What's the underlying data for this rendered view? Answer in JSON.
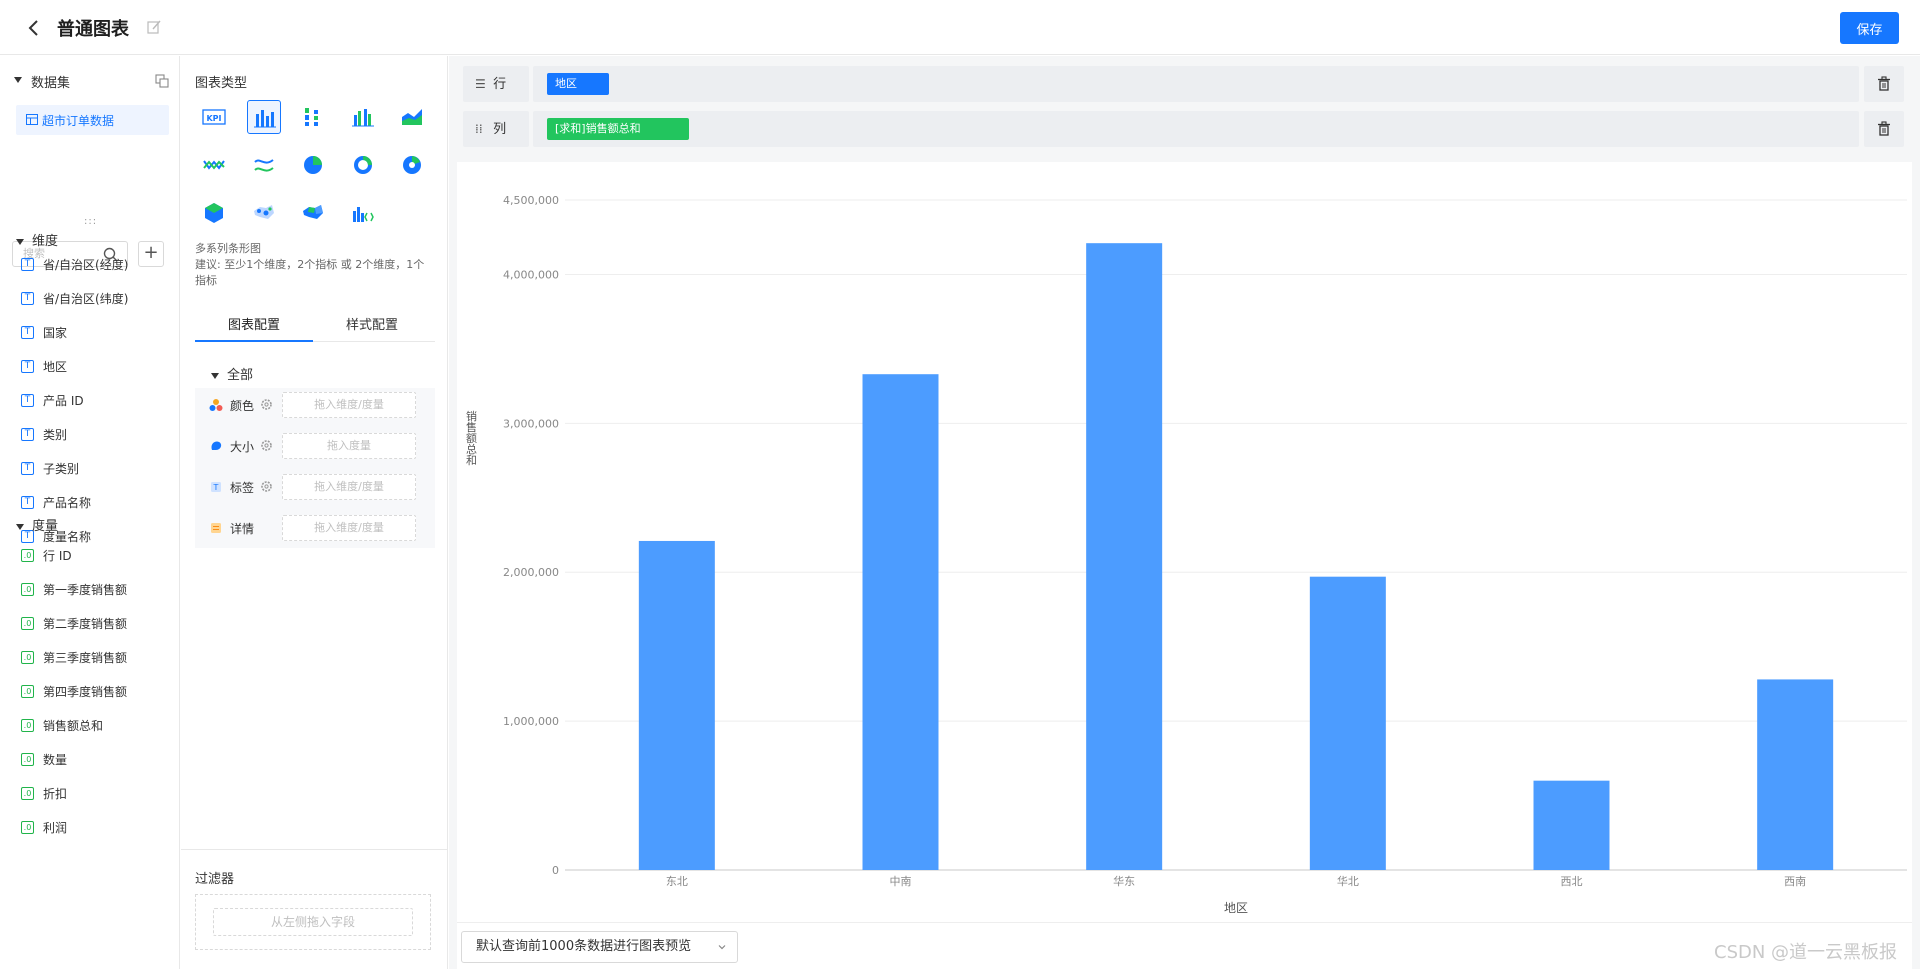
{
  "header": {
    "title": "普通图表",
    "save_label": "保存"
  },
  "dataset": {
    "section_title": "数据集",
    "items": [
      {
        "label": "超市订单数据"
      }
    ]
  },
  "fields": {
    "search_placeholder": "搜索",
    "add_label": "+",
    "splitter": ":::",
    "dimension_title": "维度",
    "dimensions": [
      {
        "label": "省/自治区(经度)"
      },
      {
        "label": "省/自治区(纬度)"
      },
      {
        "label": "国家"
      },
      {
        "label": "地区"
      },
      {
        "label": "产品 ID"
      },
      {
        "label": "类别"
      },
      {
        "label": "子类别"
      },
      {
        "label": "产品名称"
      },
      {
        "label": "度量名称"
      }
    ],
    "measure_title": "度量",
    "measures": [
      {
        "label": "行 ID"
      },
      {
        "label": "第一季度销售额"
      },
      {
        "label": "第二季度销售额"
      },
      {
        "label": "第三季度销售额"
      },
      {
        "label": "第四季度销售额"
      },
      {
        "label": "销售额总和"
      },
      {
        "label": "数量"
      },
      {
        "label": "折扣"
      },
      {
        "label": "利润"
      }
    ],
    "dim_icon_text": "T",
    "mea_icon_text": ".0"
  },
  "config": {
    "chart_type_title": "图表类型",
    "chart_types": [
      "kpi",
      "bar-grouped",
      "bar-stacked",
      "bar-multi",
      "area",
      "line",
      "wave",
      "pie",
      "donut",
      "rose",
      "hexagon",
      "map-scatter",
      "map-fill",
      "custom-chart"
    ],
    "description_line1": "多系列条形图",
    "description_line2": "建议: 至少1个维度，2个指标 或 2个维度，1个指标",
    "tabs": [
      {
        "label": "图表配置"
      },
      {
        "label": "样式配置"
      }
    ],
    "all_label": "全部",
    "encodings": [
      {
        "label": "颜色",
        "placeholder": "拖入维度/度量",
        "icon": "color-dots"
      },
      {
        "label": "大小",
        "placeholder": "拖入度量",
        "icon": "size-blob"
      },
      {
        "label": "标签",
        "placeholder": "拖入维度/度量",
        "icon": "label-tag"
      },
      {
        "label": "详情",
        "placeholder": "拖入维度/度量",
        "icon": "detail-list"
      }
    ],
    "filter_title": "过滤器",
    "filter_placeholder": "从左侧拖入字段"
  },
  "shelves": {
    "row_label": "行",
    "row_pill": "地区",
    "col_label": "列",
    "col_pill": "[求和]销售额总和"
  },
  "colors": {
    "accent": "#1677ff",
    "bar": "#4c9cff",
    "measure": "#22c55e"
  },
  "chart_data": {
    "type": "bar",
    "categories": [
      "东北",
      "中南",
      "华东",
      "华北",
      "西北",
      "西南"
    ],
    "values": [
      2210000,
      3330000,
      4210000,
      1970000,
      600000,
      1280000
    ],
    "xlabel": "地区",
    "ylabel": "销售额总和",
    "ylim": [
      0,
      4500000
    ],
    "yticks": [
      0,
      1000000,
      2000000,
      3000000,
      4000000,
      4500000
    ],
    "ytick_labels": [
      "0",
      "1,000,000",
      "2,000,000",
      "3,000,000",
      "4,000,000",
      "4,500,000"
    ],
    "grid": true
  },
  "footer": {
    "preview_label": "默认查询前1000条数据进行图表预览"
  },
  "watermark": "CSDN @道一云黑板报"
}
